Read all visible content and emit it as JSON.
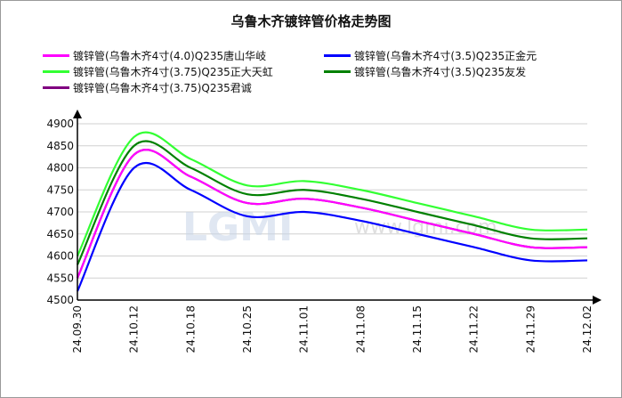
{
  "chart_data": {
    "type": "line",
    "title": "乌鲁木齐镀锌管价格走势图",
    "xlabel": "",
    "ylabel": "",
    "ylim": [
      4500,
      4900
    ],
    "yticks": [
      4500,
      4550,
      4600,
      4650,
      4700,
      4750,
      4800,
      4850,
      4900
    ],
    "x": [
      "24.09.30",
      "24.10.12",
      "24.10.18",
      "24.10.25",
      "24.11.01",
      "24.11.08",
      "24.11.15",
      "24.11.22",
      "24.11.29",
      "24.12.02"
    ],
    "legend_placement": "top",
    "grid": "horizontal",
    "watermark": {
      "logo": "LGMI",
      "url": "www.lgmi.com"
    },
    "series": [
      {
        "name": "镀锌管(乌鲁木齐4寸(4.0)Q235唐山华岐",
        "color": "#ff00ff",
        "values": [
          4550,
          4830,
          4780,
          4720,
          4730,
          4710,
          4680,
          4650,
          4620,
          4620
        ]
      },
      {
        "name": "镀锌管(乌鲁木齐4寸(3.5)Q235正金元",
        "color": "#0000ff",
        "values": [
          4520,
          4800,
          4750,
          4690,
          4700,
          4680,
          4650,
          4620,
          4590,
          4590
        ]
      },
      {
        "name": "镀锌管(乌鲁木齐4寸(3.75)Q235正大天虹",
        "color": "#33ff33",
        "values": [
          4600,
          4870,
          4820,
          4760,
          4770,
          4750,
          4720,
          4690,
          4660,
          4660
        ]
      },
      {
        "name": "镀锌管(乌鲁木齐4寸(3.5)Q235友发",
        "color": "#008000",
        "values": [
          4580,
          4850,
          4800,
          4740,
          4750,
          4730,
          4700,
          4670,
          4640,
          4640
        ]
      },
      {
        "name": "镀锌管(乌鲁木齐4寸(3.75)Q235君诚",
        "color": "#800080",
        "values": [
          4550,
          4830,
          4780,
          4720,
          4730,
          4710,
          4680,
          4650,
          4620,
          4620
        ]
      }
    ]
  }
}
